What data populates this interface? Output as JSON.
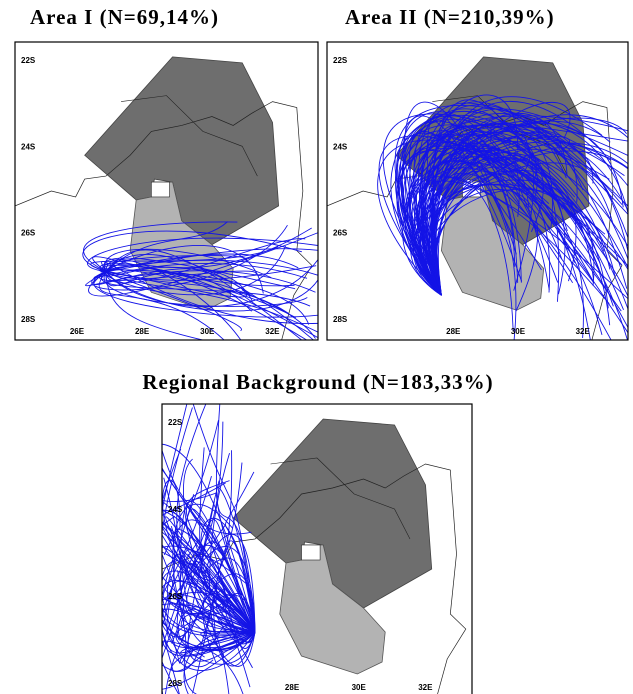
{
  "panels": [
    {
      "title": "Area I (N=69,14%)",
      "lat_labels": [
        "22S",
        "24S",
        "26S",
        "28S"
      ],
      "lon_labels": [
        "26E",
        "28E",
        "30E",
        "32E"
      ]
    },
    {
      "title": "Area II (N=210,39%)",
      "lat_labels": [
        "22S",
        "24S",
        "26S",
        "28S"
      ],
      "lon_labels": [
        "28E",
        "30E",
        "32E"
      ]
    },
    {
      "title": "Regional Background (N=183,33%)",
      "lat_labels": [
        "22S",
        "24S",
        "26S",
        "28S"
      ],
      "lon_labels": [
        "28E",
        "30E",
        "32E"
      ]
    }
  ]
}
